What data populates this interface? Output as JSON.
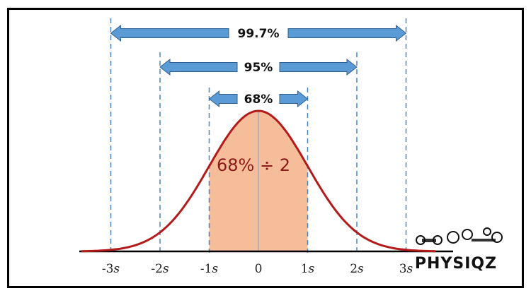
{
  "diagram": {
    "x_ticks": [
      "-3s",
      "-2s",
      "-1s",
      "0",
      "1s",
      "2s",
      "3s"
    ],
    "intervals": [
      {
        "label": "99.7%",
        "range_sd": [
          -3,
          3
        ]
      },
      {
        "label": "95%",
        "range_sd": [
          -2,
          2
        ]
      },
      {
        "label": "68%",
        "range_sd": [
          -1,
          1
        ]
      }
    ],
    "shaded_region_label": "68% ÷ 2",
    "shaded_range_sd": [
      -1,
      1
    ],
    "colors": {
      "curve": "#b31b1b",
      "shade": "#f6bd9a",
      "arrow_fill": "#5b9bd5",
      "arrow_stroke": "#2f5f8f",
      "guide": "#4a86c8"
    }
  },
  "brand": {
    "name": "PHYSIQZ",
    "icons": [
      "dumbbell-icon",
      "kettlebell-icon",
      "barbell-icon"
    ]
  }
}
